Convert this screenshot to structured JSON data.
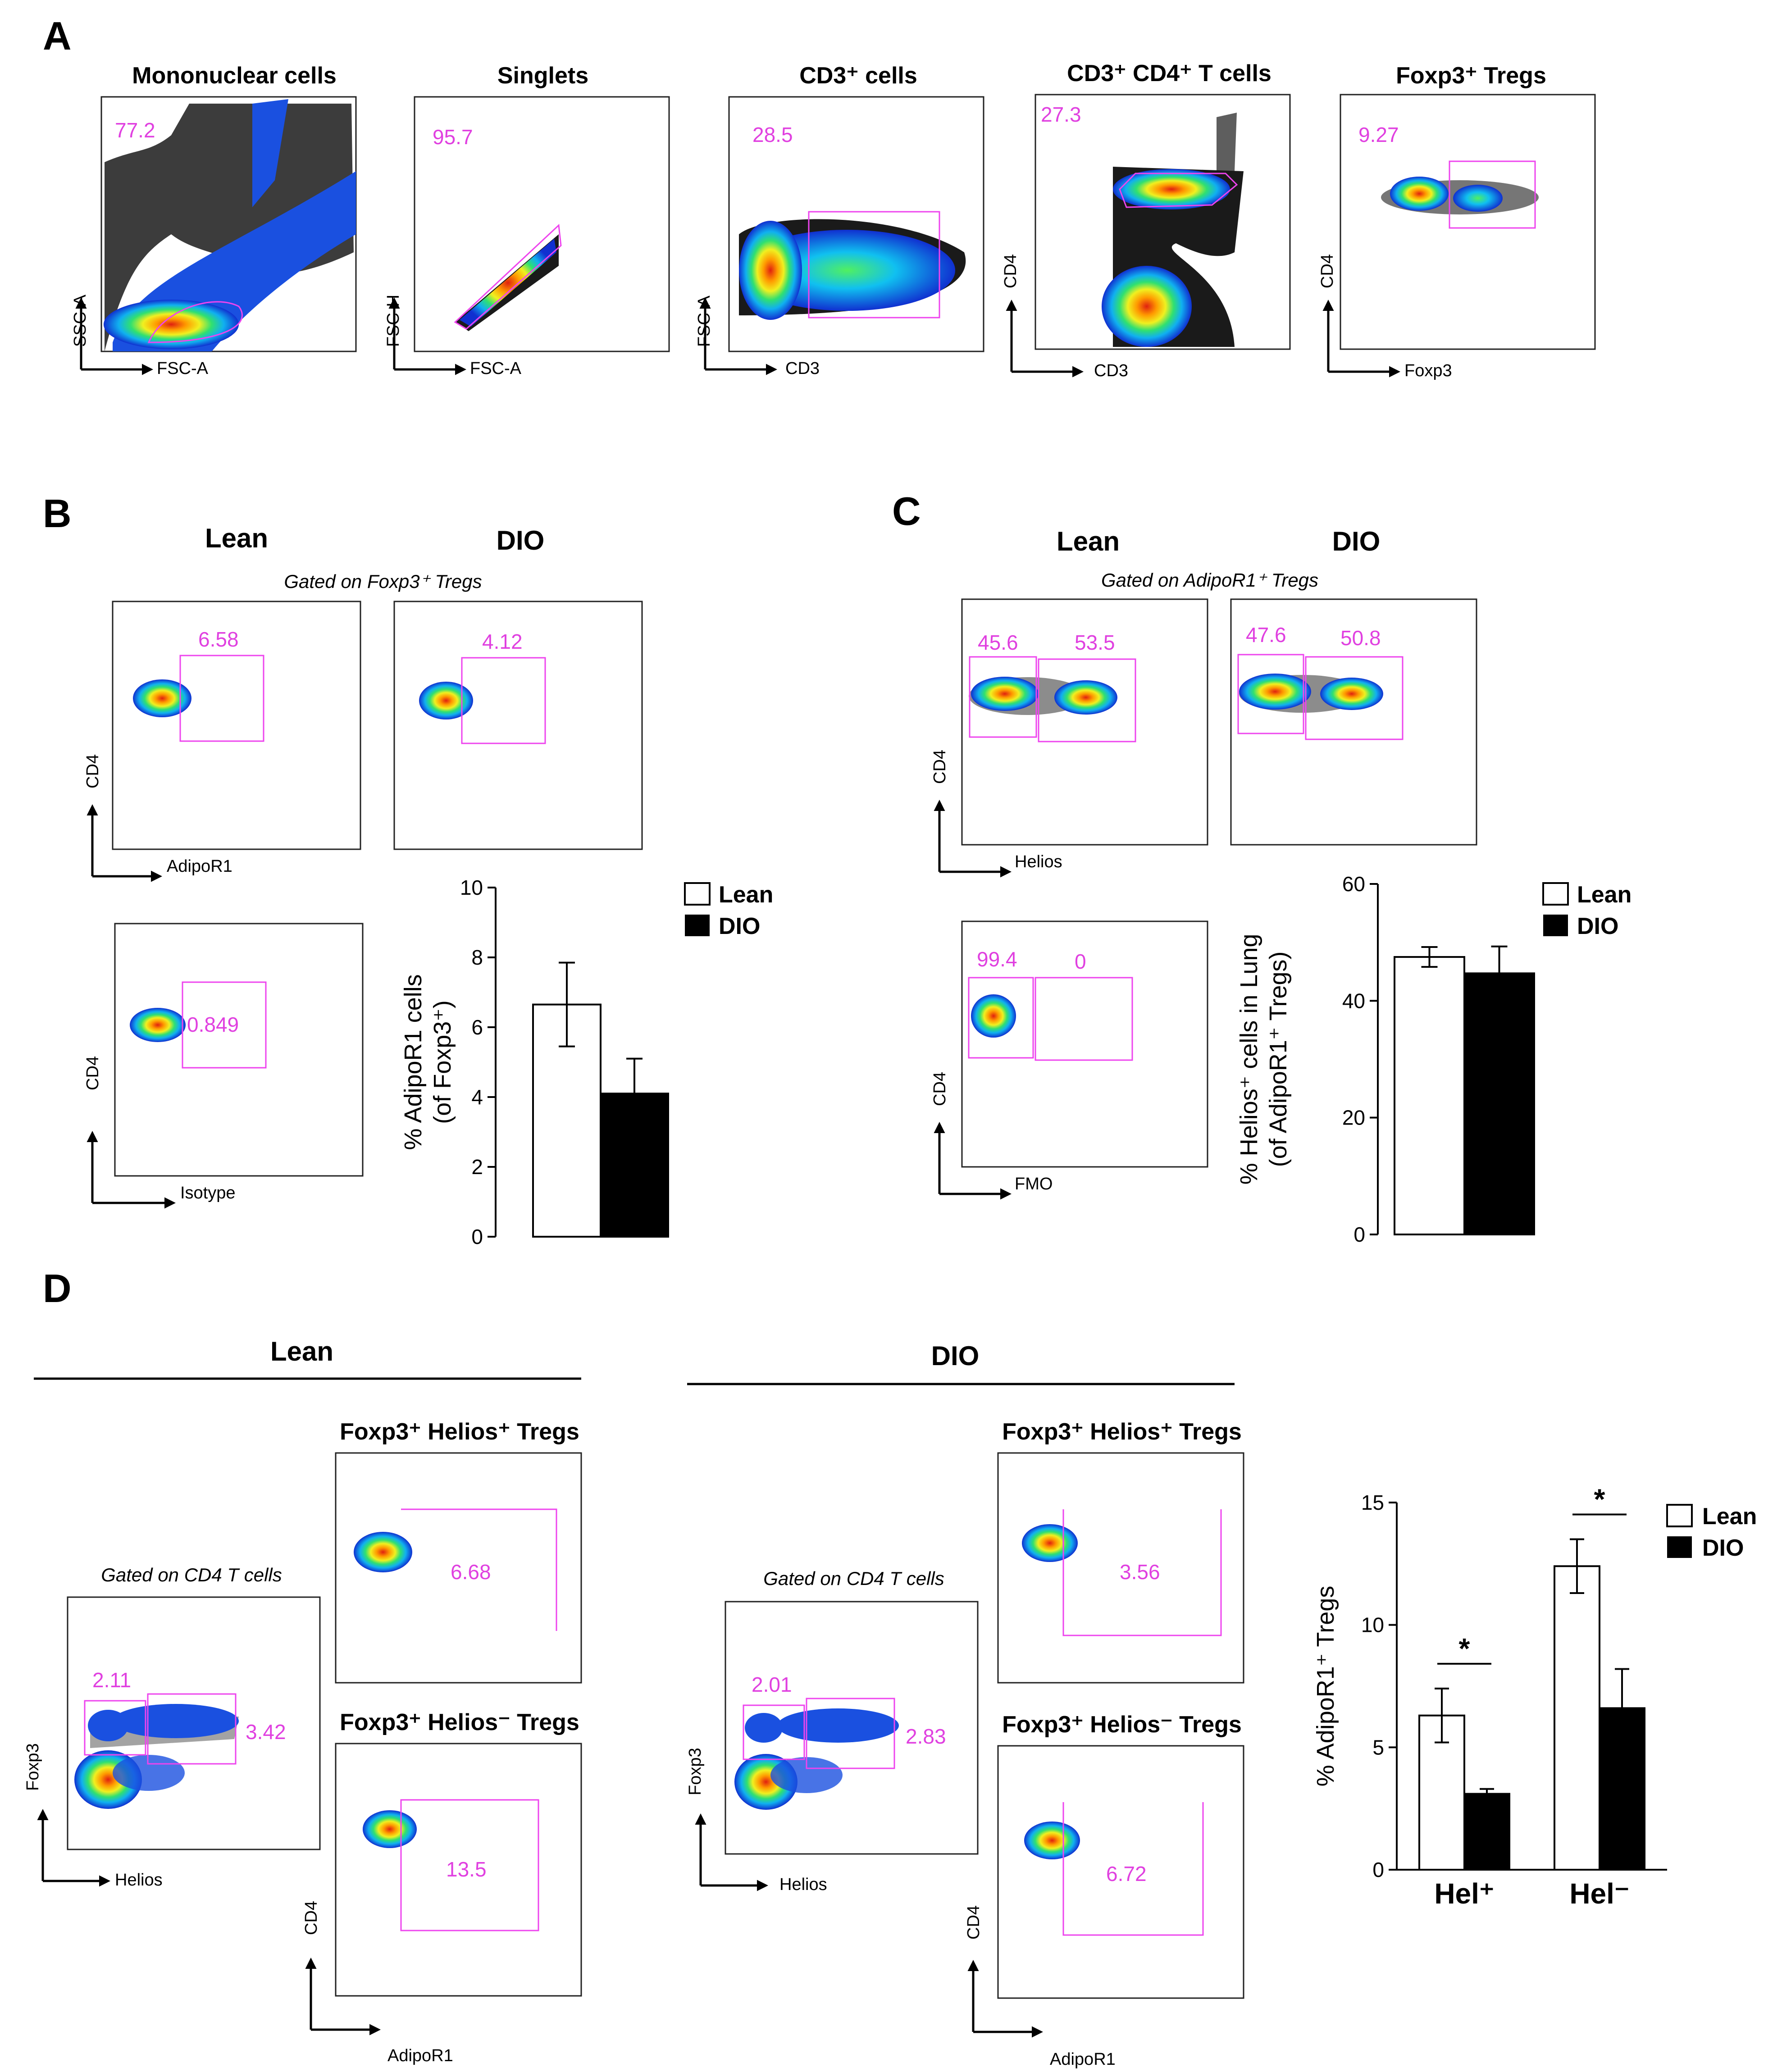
{
  "panel_letters": {
    "a": "A",
    "b": "B",
    "c": "C",
    "d": "D"
  },
  "panel_a": {
    "plots": [
      {
        "title": "Mononuclear cells",
        "x": "FSC-A",
        "y": "SSC-A",
        "gate": "77.2"
      },
      {
        "title": "Singlets",
        "x": "FSC-A",
        "y": "FSC-H",
        "gate": "95.7"
      },
      {
        "title": "CD3⁺ cells",
        "x": "CD3",
        "y": "FSC-A",
        "gate": "28.5"
      },
      {
        "title": "CD3⁺ CD4⁺ T cells",
        "x": "CD3",
        "y": "CD4",
        "gate": "27.3"
      },
      {
        "title": "Foxp3⁺ Tregs",
        "x": "Foxp3",
        "y": "CD4",
        "gate": "9.27"
      }
    ]
  },
  "panel_b": {
    "lean_label": "Lean",
    "dio_label": "DIO",
    "gated_on": "Gated on Foxp3⁺ Tregs",
    "lean_gate": "6.58",
    "dio_gate": "4.12",
    "isotype_gate": "0.849",
    "x_label": "AdipoR1",
    "y_label": "CD4",
    "isotype_x": "Isotype",
    "isotype_y": "CD4"
  },
  "panel_c": {
    "lean_label": "Lean",
    "dio_label": "DIO",
    "gated_on": "Gated on AdipoR1⁺ Tregs",
    "lean_left": "45.6",
    "lean_right": "53.5",
    "dio_left": "47.6",
    "dio_right": "50.8",
    "fmo_left": "99.4",
    "fmo_right": "0",
    "x_label": "Helios",
    "y_label": "CD4",
    "fmo_x": "FMO",
    "fmo_y": "CD4"
  },
  "panel_d": {
    "lean_label": "Lean",
    "dio_label": "DIO",
    "gated_on": "Gated on CD4 T cells",
    "helios_pos_title": "Foxp3⁺ Helios⁺ Tregs",
    "helios_neg_title": "Foxp3⁺ Helios⁻ Tregs",
    "lean_left_gate": "2.11",
    "lean_right_gate": "3.42",
    "lean_pos": "6.68",
    "lean_neg": "13.5",
    "dio_left_gate": "2.01",
    "dio_right_gate": "2.83",
    "dio_pos": "3.56",
    "dio_neg": "6.72",
    "main_x": "Helios",
    "main_y": "Foxp3",
    "sub_x": "AdipoR1",
    "sub_y": "CD4"
  },
  "chart_data": [
    {
      "type": "bar",
      "id": "B",
      "categories": [
        "Lean",
        "DIO"
      ],
      "values": [
        6.65,
        4.1
      ],
      "errors": [
        1.2,
        1.0
      ],
      "colors": [
        "#ffffff",
        "#000000"
      ],
      "ylim": [
        0,
        10
      ],
      "yticks": [
        0,
        2,
        4,
        6,
        8,
        10
      ],
      "ylabel_line1": "% AdipoR1 cells",
      "ylabel_line2": "(of Foxp3⁺)",
      "legend": [
        "Lean",
        "DIO"
      ]
    },
    {
      "type": "bar",
      "id": "C",
      "categories": [
        "Lean",
        "DIO"
      ],
      "values": [
        47.5,
        44.7
      ],
      "errors": [
        1.7,
        4.6
      ],
      "colors": [
        "#ffffff",
        "#000000"
      ],
      "ylim": [
        0,
        60
      ],
      "yticks": [
        0,
        20,
        40,
        60
      ],
      "ylabel_line1": "% Helios⁺ cells in Lung",
      "ylabel_line2": "(of AdipoR1⁺ Tregs)",
      "legend": [
        "Lean",
        "DIO"
      ]
    },
    {
      "type": "bar",
      "id": "D",
      "groups": [
        "Hel⁺",
        "Hel⁻"
      ],
      "series": [
        {
          "name": "Lean",
          "color": "#ffffff",
          "values": [
            6.3,
            12.4
          ],
          "errors": [
            1.1,
            1.1
          ]
        },
        {
          "name": "DIO",
          "color": "#000000",
          "values": [
            3.1,
            6.6
          ],
          "errors": [
            0.2,
            1.6
          ]
        }
      ],
      "significance": [
        "*",
        "*"
      ],
      "ylim": [
        0,
        15
      ],
      "yticks": [
        0,
        5,
        10,
        15
      ],
      "ylabel": "% AdipoR1⁺ Tregs",
      "legend": [
        "Lean",
        "DIO"
      ]
    }
  ]
}
